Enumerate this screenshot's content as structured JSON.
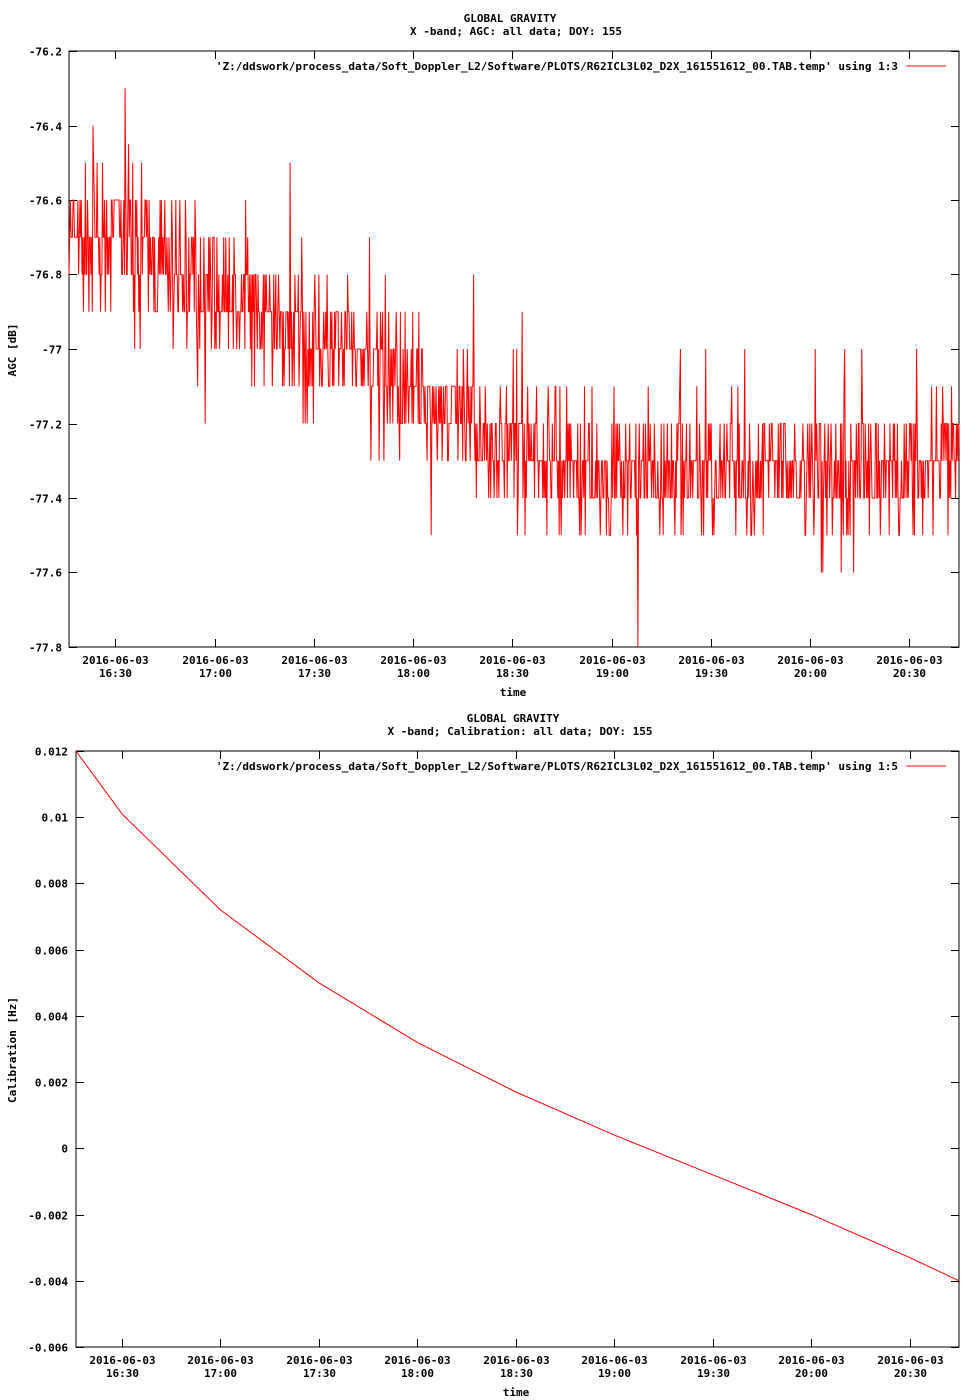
{
  "chart_data": [
    {
      "type": "line",
      "title": "GLOBAL GRAVITY",
      "subtitle": "X -band; AGC: all data; DOY: 155",
      "xlabel": "time",
      "ylabel": "AGC [dB]",
      "ylim": [
        -77.8,
        -76.2
      ],
      "yticks": [
        "-76.2",
        "-76.4",
        "-76.6",
        "-76.8",
        "-77",
        "-77.2",
        "-77.4",
        "-77.6",
        "-77.8"
      ],
      "ytick_values": [
        -76.2,
        -76.4,
        -76.6,
        -76.8,
        -77.0,
        -77.2,
        -77.4,
        -77.6,
        -77.8
      ],
      "xlim": [
        "2016-06-03 16:16",
        "2016-06-03 20:45"
      ],
      "xticks": [
        {
          "date": "2016-06-03",
          "time": "16:30",
          "value": "2016-06-03 16:30"
        },
        {
          "date": "2016-06-03",
          "time": "17:00",
          "value": "2016-06-03 17:00"
        },
        {
          "date": "2016-06-03",
          "time": "17:30",
          "value": "2016-06-03 17:30"
        },
        {
          "date": "2016-06-03",
          "time": "18:00",
          "value": "2016-06-03 18:00"
        },
        {
          "date": "2016-06-03",
          "time": "18:30",
          "value": "2016-06-03 18:30"
        },
        {
          "date": "2016-06-03",
          "time": "19:00",
          "value": "2016-06-03 19:00"
        },
        {
          "date": "2016-06-03",
          "time": "19:30",
          "value": "2016-06-03 19:30"
        },
        {
          "date": "2016-06-03",
          "time": "20:00",
          "value": "2016-06-03 20:00"
        },
        {
          "date": "2016-06-03",
          "time": "20:30",
          "value": "2016-06-03 20:30"
        }
      ],
      "legend_position": "top-right",
      "grid": false,
      "series": [
        {
          "name": "'Z:/ddswork/process_data/Soft_Doppler_L2/Software/PLOTS/R62ICL3L02_D2X_161551612_00.TAB.temp' using 1:3",
          "color": "#ff0000",
          "style": "noisy",
          "trend": [
            {
              "x": "2016-06-03 16:16",
              "y": -76.72
            },
            {
              "x": "2016-06-03 16:30",
              "y": -76.7
            },
            {
              "x": "2016-06-03 17:00",
              "y": -76.85
            },
            {
              "x": "2016-06-03 17:30",
              "y": -76.98
            },
            {
              "x": "2016-06-03 18:00",
              "y": -77.1
            },
            {
              "x": "2016-06-03 18:30",
              "y": -77.28
            },
            {
              "x": "2016-06-03 19:00",
              "y": -77.35
            },
            {
              "x": "2016-06-03 19:30",
              "y": -77.33
            },
            {
              "x": "2016-06-03 20:00",
              "y": -77.33
            },
            {
              "x": "2016-06-03 20:30",
              "y": -77.32
            },
            {
              "x": "2016-06-03 20:45",
              "y": -77.3
            }
          ],
          "quantization": 0.1,
          "peaks": [
            {
              "x": "2016-06-03 16:33",
              "y": -76.3
            },
            {
              "x": "2016-06-03 16:34",
              "y": -76.45
            },
            {
              "x": "2016-06-03 19:08",
              "y": -77.8
            }
          ]
        }
      ]
    },
    {
      "type": "line",
      "title": "GLOBAL GRAVITY",
      "subtitle": "X -band; Calibration: all data; DOY: 155",
      "xlabel": "time",
      "ylabel": "Calibration [Hz]",
      "ylim": [
        -0.006,
        0.012
      ],
      "yticks": [
        "0.012",
        "0.01",
        "0.008",
        "0.006",
        "0.004",
        "0.002",
        "0",
        "-0.002",
        "-0.004",
        "-0.006"
      ],
      "ytick_values": [
        0.012,
        0.01,
        0.008,
        0.006,
        0.004,
        0.002,
        0,
        -0.002,
        -0.004,
        -0.006
      ],
      "xlim": [
        "2016-06-03 16:16",
        "2016-06-03 20:45"
      ],
      "xticks": [
        {
          "date": "2016-06-03",
          "time": "16:30",
          "value": "2016-06-03 16:30"
        },
        {
          "date": "2016-06-03",
          "time": "17:00",
          "value": "2016-06-03 17:00"
        },
        {
          "date": "2016-06-03",
          "time": "17:30",
          "value": "2016-06-03 17:30"
        },
        {
          "date": "2016-06-03",
          "time": "18:00",
          "value": "2016-06-03 18:00"
        },
        {
          "date": "2016-06-03",
          "time": "18:30",
          "value": "2016-06-03 18:30"
        },
        {
          "date": "2016-06-03",
          "time": "19:00",
          "value": "2016-06-03 19:00"
        },
        {
          "date": "2016-06-03",
          "time": "19:30",
          "value": "2016-06-03 19:30"
        },
        {
          "date": "2016-06-03",
          "time": "20:00",
          "value": "2016-06-03 20:00"
        },
        {
          "date": "2016-06-03",
          "time": "20:30",
          "value": "2016-06-03 20:30"
        }
      ],
      "legend_position": "top-right",
      "grid": false,
      "series": [
        {
          "name": "'Z:/ddswork/process_data/Soft_Doppler_L2/Software/PLOTS/R62ICL3L02_D2X_161551612_00.TAB.temp' using 1:5",
          "color": "#ff0000",
          "style": "smooth",
          "points": [
            {
              "x": "2016-06-03 16:16",
              "y": 0.012
            },
            {
              "x": "2016-06-03 16:30",
              "y": 0.0101
            },
            {
              "x": "2016-06-03 17:00",
              "y": 0.0072
            },
            {
              "x": "2016-06-03 17:30",
              "y": 0.005
            },
            {
              "x": "2016-06-03 18:00",
              "y": 0.0032
            },
            {
              "x": "2016-06-03 18:30",
              "y": 0.0017
            },
            {
              "x": "2016-06-03 19:00",
              "y": 0.0004
            },
            {
              "x": "2016-06-03 19:30",
              "y": -0.0008
            },
            {
              "x": "2016-06-03 20:00",
              "y": -0.002
            },
            {
              "x": "2016-06-03 20:30",
              "y": -0.0033
            },
            {
              "x": "2016-06-03 20:45",
              "y": -0.004
            }
          ]
        }
      ]
    }
  ]
}
